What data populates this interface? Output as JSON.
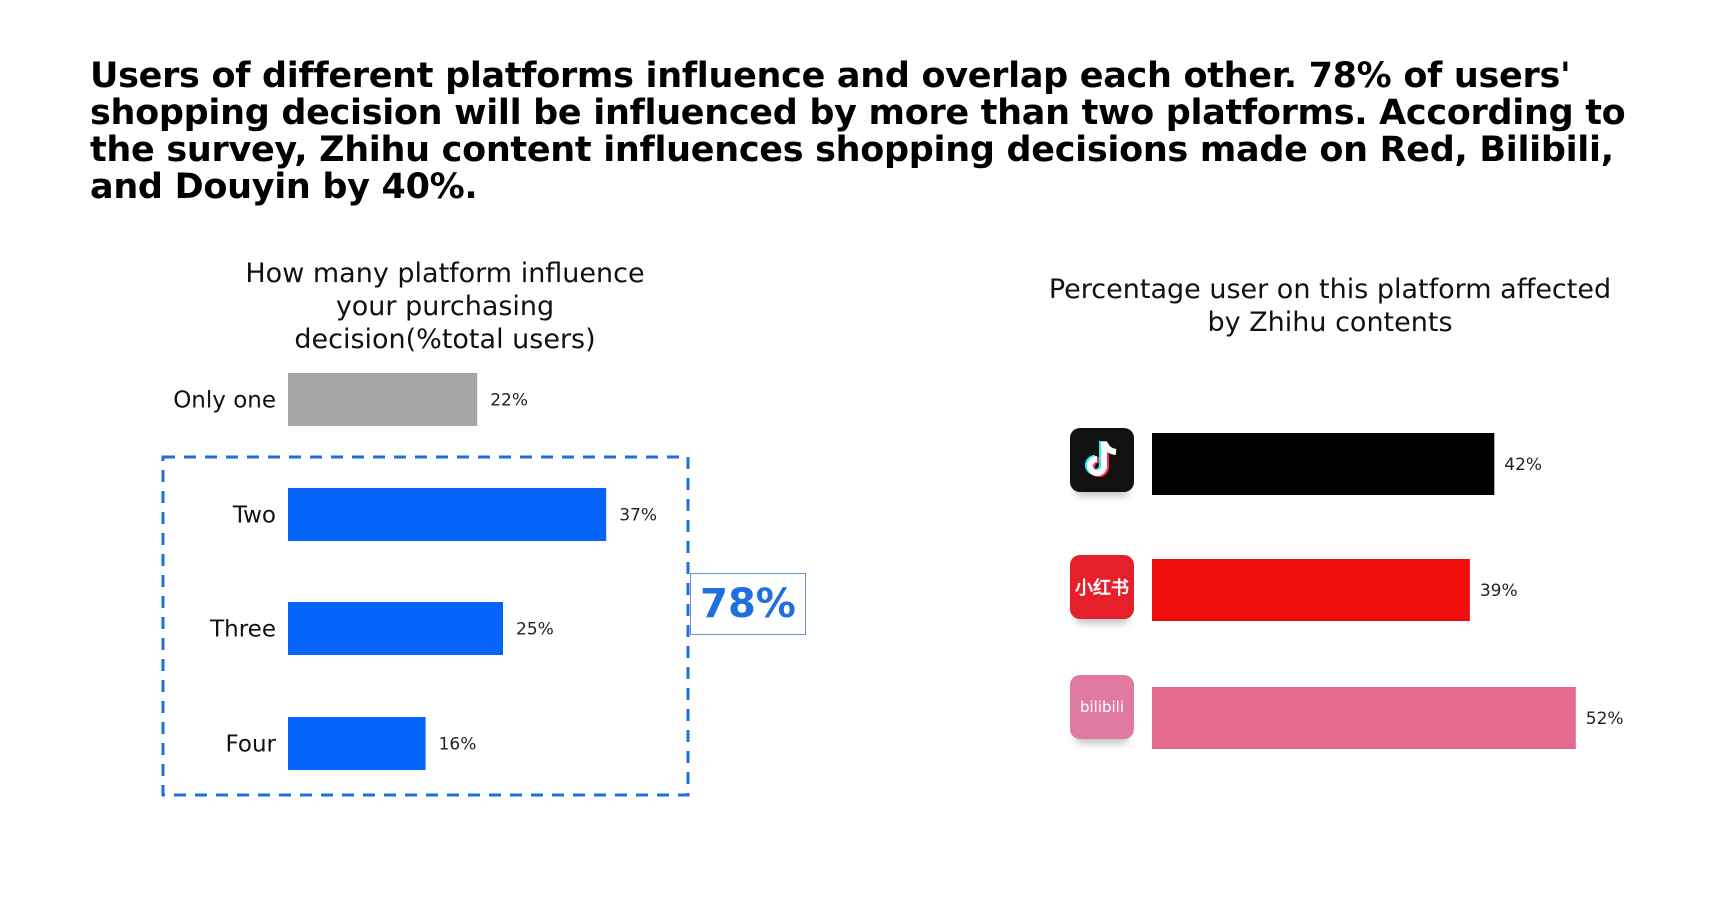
{
  "headline": "Users of different platforms influence and overlap each other. 78% of users' shopping decision will be influenced by more than two platforms. According to the survey, Zhihu content influences shopping decisions made on Red, Bilibili, and Douyin by 40%.",
  "callout": "78%",
  "logos": {
    "douyin": {
      "icon": "douyin-logo-icon",
      "color": "#000000"
    },
    "red": {
      "icon": "xiaohongshu-logo-icon",
      "text": "小红书",
      "color": "#e6202a"
    },
    "bilibili": {
      "icon": "bilibili-logo-icon",
      "text": "bilibili",
      "color": "#e07aa0"
    }
  },
  "chart_data": [
    {
      "type": "bar",
      "orientation": "horizontal",
      "title": "How many platform influence your purchasing decision(%total users)",
      "categories": [
        "Only one",
        "Two",
        "Three",
        "Four"
      ],
      "values": [
        22,
        37,
        25,
        16
      ],
      "value_labels": [
        "22%",
        "37%",
        "25%",
        "16%"
      ],
      "colors": [
        "#a6a6a6",
        "#0565fa",
        "#0565fa",
        "#0565fa"
      ],
      "unit": "%",
      "grid": false
    },
    {
      "type": "bar",
      "orientation": "horizontal",
      "title": "Percentage user on this platform affected by Zhihu contents",
      "categories": [
        "Douyin",
        "Red",
        "Bilibili"
      ],
      "category_labels_shown_as": "logos",
      "values": [
        42,
        39,
        52
      ],
      "value_labels": [
        "42%",
        "39%",
        "52%"
      ],
      "colors": [
        "#000000",
        "#f20d0d",
        "#e56a8d"
      ],
      "unit": "%",
      "grid": false
    }
  ]
}
